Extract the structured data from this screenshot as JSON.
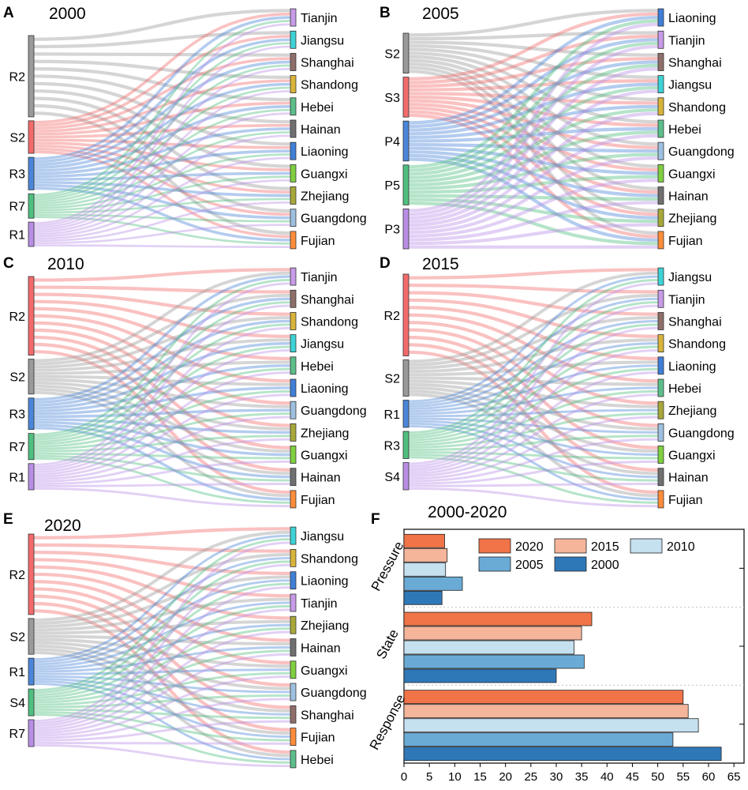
{
  "colors": {
    "R2": "#f26b6b",
    "S2": "#9a9a9a",
    "S3": "#f26b6b",
    "R3": "#4a86d8",
    "R7": "#4fbf7f",
    "R1": "#b98ee6",
    "P4": "#4a86d8",
    "P5": "#4fbf7f",
    "P3": "#b98ee6",
    "S4": "#b98ee6",
    "Tianjin": "#c79be8",
    "Jiangsu": "#3dd3d6",
    "Shanghai": "#8f6f6a",
    "Shandong": "#d9b43a",
    "Hebei": "#5cbf8a",
    "Hainan": "#707070",
    "Liaoning": "#3f7fd8",
    "Guangxi": "#7fcf3f",
    "Zhejiang": "#a8a83a",
    "Guangdong": "#9ec0e0",
    "Fujian": "#ff8c3a",
    "y2020": "#f07448",
    "y2015": "#f5b59a",
    "y2010": "#c5e0ef",
    "y2005": "#6aabd6",
    "y2000": "#2f78b8"
  },
  "chart_data": [
    {
      "type": "sankey",
      "panel": "A",
      "title": "2000",
      "sources": [
        {
          "name": "R2",
          "color_key": "R2",
          "weight": 5
        },
        {
          "name": "S2",
          "color_key": "S2",
          "weight": 2
        },
        {
          "name": "R3",
          "color_key": "R3",
          "weight": 2
        },
        {
          "name": "R7",
          "color_key": "R7",
          "weight": 1.5
        },
        {
          "name": "R1",
          "color_key": "R1",
          "weight": 1.5
        }
      ],
      "targets": [
        "Tianjin",
        "Jiangsu",
        "Shanghai",
        "Shandong",
        "Hebei",
        "Hainan",
        "Liaoning",
        "Guangxi",
        "Zhejiang",
        "Guangdong",
        "Fujian"
      ],
      "source_colors": [
        "#9a9a9a",
        "#f26b6b",
        "#4a86d8",
        "#4fbf7f",
        "#b98ee6"
      ]
    },
    {
      "type": "sankey",
      "panel": "B",
      "title": "2005",
      "sources": [
        {
          "name": "S2",
          "weight": 2
        },
        {
          "name": "S3",
          "weight": 2
        },
        {
          "name": "P4",
          "weight": 2
        },
        {
          "name": "P5",
          "weight": 2
        },
        {
          "name": "P3",
          "weight": 2
        }
      ],
      "targets": [
        "Liaoning",
        "Tianjin",
        "Shanghai",
        "Jiangsu",
        "Shandong",
        "Hebei",
        "Guangdong",
        "Guangxi",
        "Hainan",
        "Zhejiang",
        "Fujian"
      ],
      "source_colors": [
        "#9a9a9a",
        "#f26b6b",
        "#4a86d8",
        "#4fbf7f",
        "#b98ee6"
      ]
    },
    {
      "type": "sankey",
      "panel": "C",
      "title": "2010",
      "sources": [
        {
          "name": "R2",
          "weight": 4.5
        },
        {
          "name": "S2",
          "weight": 2
        },
        {
          "name": "R3",
          "weight": 1.8
        },
        {
          "name": "R7",
          "weight": 1.5
        },
        {
          "name": "R1",
          "weight": 1.5
        }
      ],
      "targets": [
        "Tianjin",
        "Shanghai",
        "Shandong",
        "Jiangsu",
        "Hebei",
        "Liaoning",
        "Guangdong",
        "Zhejiang",
        "Guangxi",
        "Hainan",
        "Fujian"
      ],
      "source_colors": [
        "#f26b6b",
        "#9a9a9a",
        "#4a86d8",
        "#4fbf7f",
        "#b98ee6"
      ]
    },
    {
      "type": "sankey",
      "panel": "D",
      "title": "2015",
      "sources": [
        {
          "name": "R2",
          "weight": 4.5
        },
        {
          "name": "S2",
          "weight": 2
        },
        {
          "name": "R1",
          "weight": 1.5
        },
        {
          "name": "R3",
          "weight": 1.5
        },
        {
          "name": "S4",
          "weight": 1.5
        }
      ],
      "targets": [
        "Jiangsu",
        "Tianjin",
        "Shanghai",
        "Shandong",
        "Liaoning",
        "Hebei",
        "Zhejiang",
        "Guangdong",
        "Guangxi",
        "Hainan",
        "Fujian"
      ],
      "source_colors": [
        "#f26b6b",
        "#9a9a9a",
        "#4a86d8",
        "#4fbf7f",
        "#b98ee6"
      ]
    },
    {
      "type": "sankey",
      "panel": "E",
      "title": "2020",
      "sources": [
        {
          "name": "R2",
          "weight": 4.5
        },
        {
          "name": "S2",
          "weight": 2
        },
        {
          "name": "R1",
          "weight": 1.5
        },
        {
          "name": "S4",
          "weight": 1.5
        },
        {
          "name": "R7",
          "weight": 1.5
        }
      ],
      "targets": [
        "Jiangsu",
        "Shandong",
        "Liaoning",
        "Tianjin",
        "Zhejiang",
        "Hainan",
        "Guangxi",
        "Guangdong",
        "Shanghai",
        "Fujian",
        "Hebei"
      ],
      "source_colors": [
        "#f26b6b",
        "#9a9a9a",
        "#4a86d8",
        "#4fbf7f",
        "#b98ee6"
      ]
    },
    {
      "type": "bar",
      "orientation": "horizontal",
      "panel": "F",
      "title": "2000-2020",
      "categories": [
        "Pressure",
        "State",
        "Response"
      ],
      "series": [
        {
          "name": "2020",
          "color_key": "y2020",
          "values": [
            8,
            37,
            55
          ]
        },
        {
          "name": "2015",
          "color_key": "y2015",
          "values": [
            8.5,
            35,
            56
          ]
        },
        {
          "name": "2010",
          "color_key": "y2010",
          "values": [
            8.2,
            33.5,
            58
          ]
        },
        {
          "name": "2005",
          "color_key": "y2005",
          "values": [
            11.5,
            35.5,
            53
          ]
        },
        {
          "name": "2000",
          "color_key": "y2000",
          "values": [
            7.5,
            30,
            62.5
          ]
        }
      ],
      "legend_order": [
        "2020",
        "2015",
        "2010",
        "2005",
        "2000"
      ],
      "xticks": [
        0,
        5,
        10,
        15,
        20,
        25,
        30,
        35,
        40,
        45,
        50,
        55,
        60,
        65
      ],
      "xlim": [
        0,
        67
      ]
    }
  ]
}
